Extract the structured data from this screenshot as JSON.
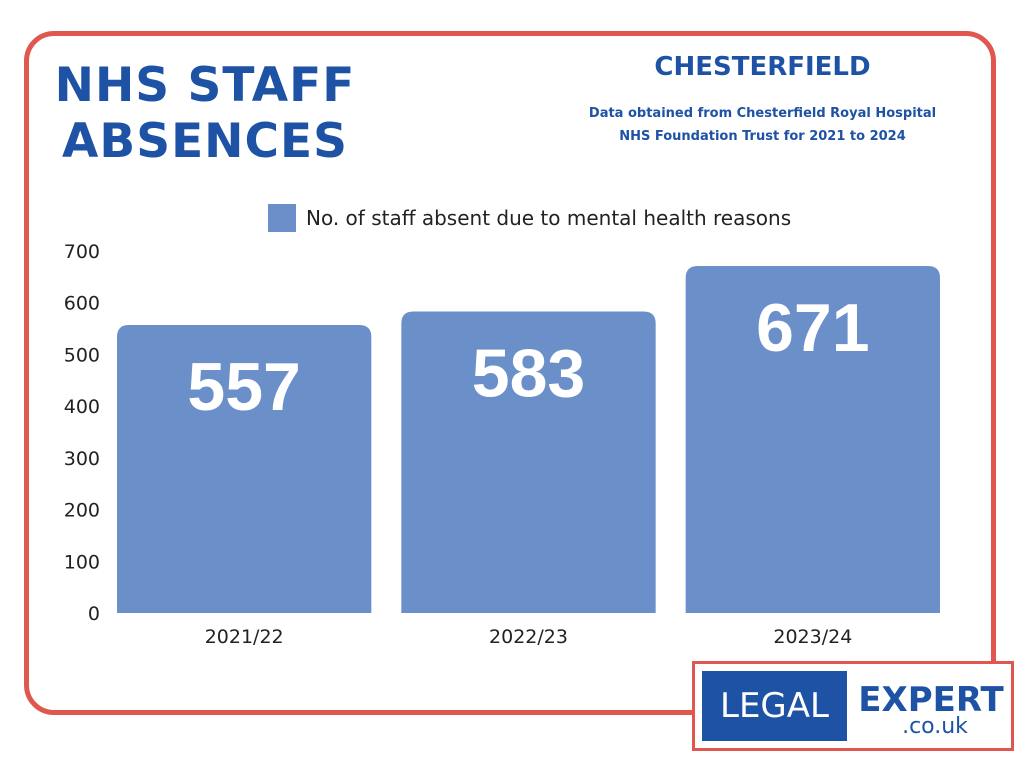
{
  "header": {
    "title_line1": "NHS STAFF",
    "title_line2": "ABSENCES",
    "location": "CHESTERFIELD",
    "source_line1": "Data obtained from Chesterfield Royal Hospital",
    "source_line2": "NHS Foundation Trust for 2021 to 2024"
  },
  "colors": {
    "accent": "#1d52a5",
    "border": "#e0574f",
    "bar": "#6a8fc9"
  },
  "chart_data": {
    "type": "bar",
    "categories": [
      "2021/22",
      "2022/23",
      "2023/24"
    ],
    "series": [
      {
        "name": "No. of staff absent due to mental health reasons",
        "values": [
          557,
          583,
          671
        ]
      }
    ],
    "data_labels": [
      "557",
      "583",
      "671"
    ],
    "ylim": [
      0,
      700
    ],
    "yticks": [
      0,
      100,
      200,
      300,
      400,
      500,
      600,
      700
    ],
    "xlabel": "",
    "ylabel": "",
    "grid": false,
    "legend_position": "top"
  },
  "logo": {
    "left_text": "LEGAL",
    "right_text": "EXPERT",
    "domain_text": ".co.uk"
  }
}
